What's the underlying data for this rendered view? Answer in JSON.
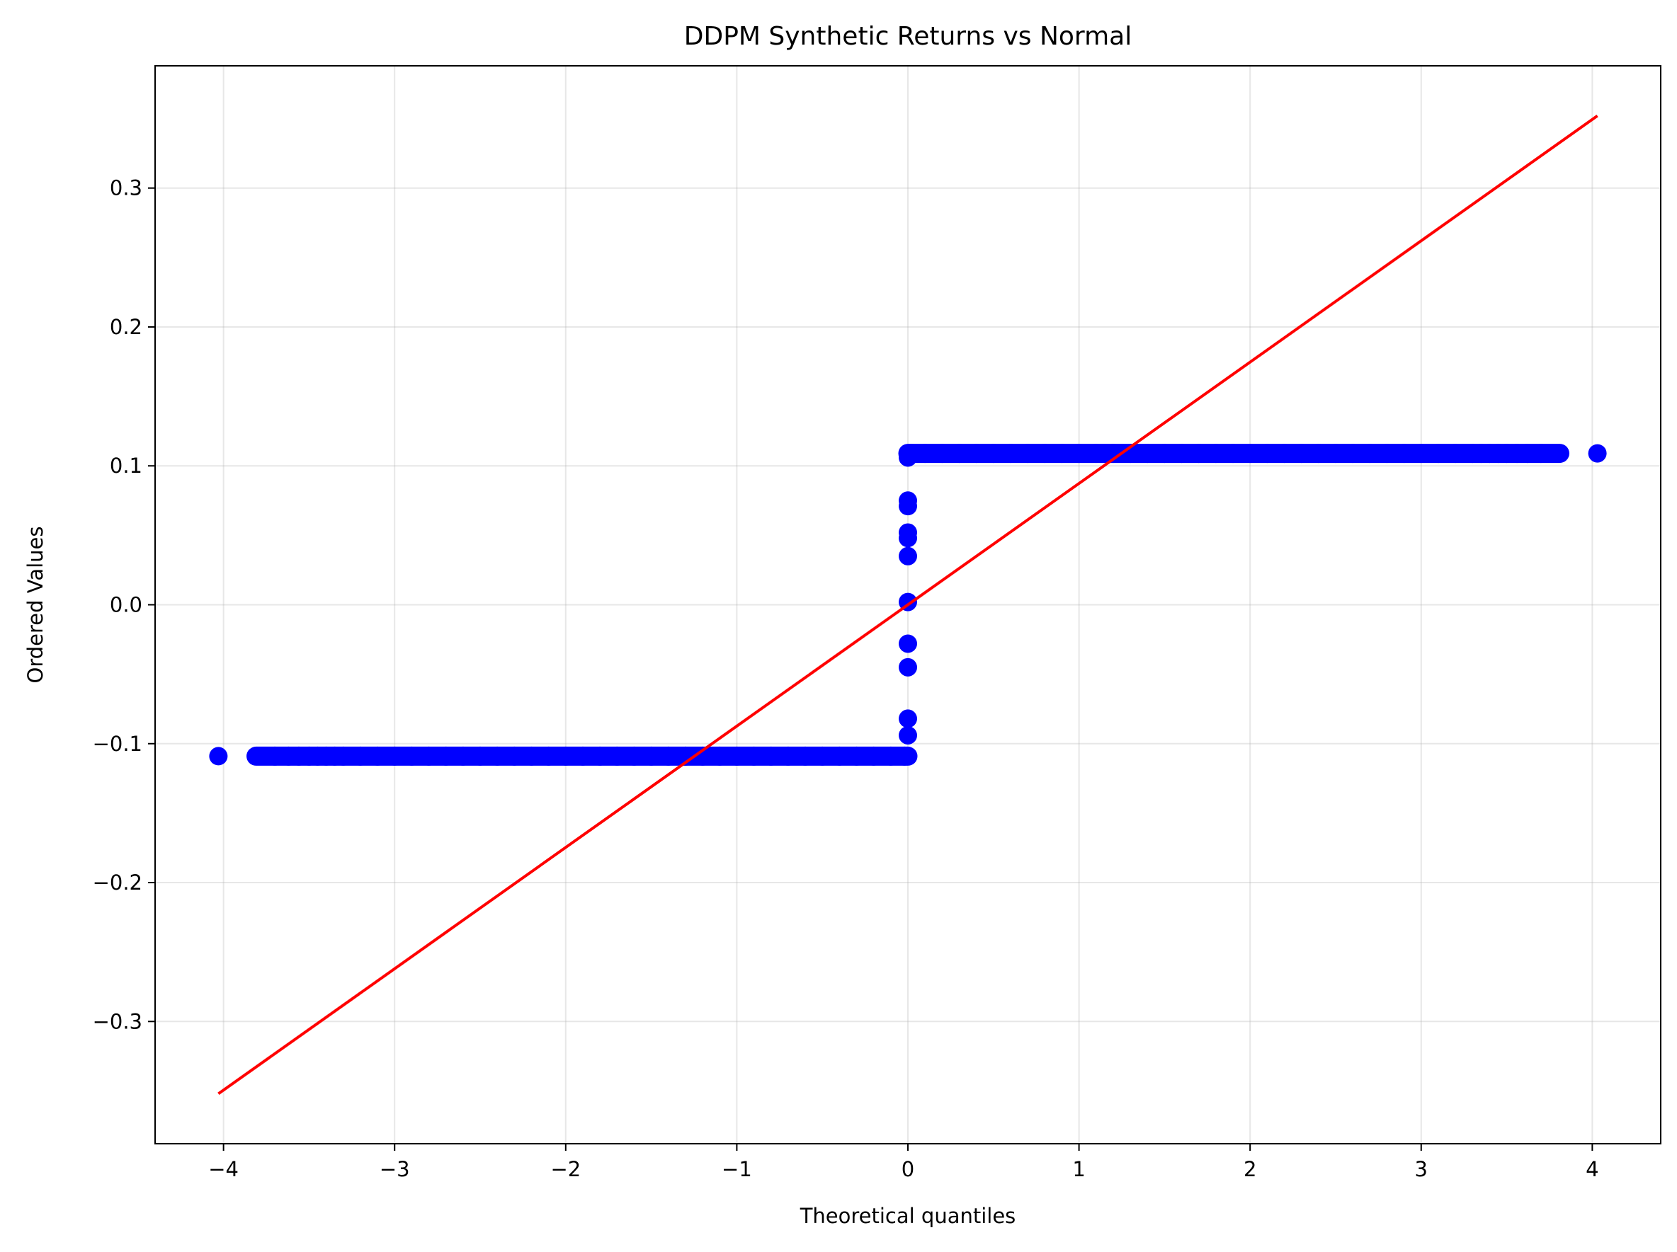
{
  "chart_data": {
    "type": "scatter",
    "title": "DDPM Synthetic Returns vs Normal",
    "xlabel": "Theoretical quantiles",
    "ylabel": "Ordered Values",
    "xlim": [
      -4.4,
      4.4
    ],
    "ylim": [
      -0.388,
      0.388
    ],
    "grid": true,
    "xticks": [
      -4,
      -3,
      -2,
      -1,
      0,
      1,
      2,
      3,
      4
    ],
    "xtick_labels": [
      "−4",
      "−3",
      "−2",
      "−1",
      "0",
      "1",
      "2",
      "3",
      "4"
    ],
    "yticks": [
      -0.3,
      -0.2,
      -0.1,
      0.0,
      0.1,
      0.2,
      0.3
    ],
    "ytick_labels": [
      "−0.3",
      "−0.2",
      "−0.1",
      "0.0",
      "0.1",
      "0.2",
      "0.3"
    ],
    "series": [
      {
        "type": "scatter",
        "color": "#0000ff",
        "points": [
          [
            -4.03,
            -0.109
          ],
          [
            -3.81,
            -0.109
          ],
          [
            -3.7,
            -0.109
          ],
          [
            -3.62,
            -0.109
          ],
          [
            -3.56,
            -0.109
          ],
          [
            -3.5,
            -0.109
          ],
          [
            -3.45,
            -0.109
          ],
          [
            -3.4,
            -0.109
          ],
          [
            -3.35,
            -0.109
          ],
          [
            -3.3,
            -0.109
          ],
          [
            -3.2,
            -0.109
          ],
          [
            -3.1,
            -0.109
          ],
          [
            -3.0,
            -0.109
          ],
          [
            -2.9,
            -0.109
          ],
          [
            -2.8,
            -0.109
          ],
          [
            -2.7,
            -0.109
          ],
          [
            -2.6,
            -0.109
          ],
          [
            -2.5,
            -0.109
          ],
          [
            -2.4,
            -0.109
          ],
          [
            -2.3,
            -0.109
          ],
          [
            -2.2,
            -0.109
          ],
          [
            -2.1,
            -0.109
          ],
          [
            -2.0,
            -0.109
          ],
          [
            -1.9,
            -0.109
          ],
          [
            -1.8,
            -0.109
          ],
          [
            -1.7,
            -0.109
          ],
          [
            -1.6,
            -0.109
          ],
          [
            -1.5,
            -0.109
          ],
          [
            -1.4,
            -0.109
          ],
          [
            -1.3,
            -0.109
          ],
          [
            -1.2,
            -0.109
          ],
          [
            -1.1,
            -0.109
          ],
          [
            -1.0,
            -0.109
          ],
          [
            -0.9,
            -0.109
          ],
          [
            -0.8,
            -0.109
          ],
          [
            -0.7,
            -0.109
          ],
          [
            -0.6,
            -0.109
          ],
          [
            -0.5,
            -0.109
          ],
          [
            -0.4,
            -0.109
          ],
          [
            -0.3,
            -0.109
          ],
          [
            -0.2,
            -0.109
          ],
          [
            -0.1,
            -0.109
          ],
          [
            -0.02,
            -0.109
          ],
          [
            0.0,
            -0.109
          ],
          [
            0.0,
            -0.094
          ],
          [
            0.0,
            -0.082
          ],
          [
            0.0,
            -0.045
          ],
          [
            0.0,
            -0.028
          ],
          [
            0.0,
            0.002
          ],
          [
            0.0,
            0.035
          ],
          [
            0.0,
            0.048
          ],
          [
            0.0,
            0.052
          ],
          [
            0.0,
            0.071
          ],
          [
            0.0,
            0.075
          ],
          [
            0.0,
            0.106
          ],
          [
            0.0,
            0.109
          ],
          [
            0.02,
            0.109
          ],
          [
            0.1,
            0.109
          ],
          [
            0.2,
            0.109
          ],
          [
            0.3,
            0.109
          ],
          [
            0.4,
            0.109
          ],
          [
            0.5,
            0.109
          ],
          [
            0.6,
            0.109
          ],
          [
            0.7,
            0.109
          ],
          [
            0.8,
            0.109
          ],
          [
            0.9,
            0.109
          ],
          [
            1.0,
            0.109
          ],
          [
            1.1,
            0.109
          ],
          [
            1.2,
            0.109
          ],
          [
            1.3,
            0.109
          ],
          [
            1.4,
            0.109
          ],
          [
            1.5,
            0.109
          ],
          [
            1.6,
            0.109
          ],
          [
            1.7,
            0.109
          ],
          [
            1.8,
            0.109
          ],
          [
            1.9,
            0.109
          ],
          [
            2.0,
            0.109
          ],
          [
            2.1,
            0.109
          ],
          [
            2.2,
            0.109
          ],
          [
            2.3,
            0.109
          ],
          [
            2.4,
            0.109
          ],
          [
            2.5,
            0.109
          ],
          [
            2.6,
            0.109
          ],
          [
            2.7,
            0.109
          ],
          [
            2.8,
            0.109
          ],
          [
            2.9,
            0.109
          ],
          [
            3.0,
            0.109
          ],
          [
            3.1,
            0.109
          ],
          [
            3.2,
            0.109
          ],
          [
            3.3,
            0.109
          ],
          [
            3.35,
            0.109
          ],
          [
            3.4,
            0.109
          ],
          [
            3.45,
            0.109
          ],
          [
            3.5,
            0.109
          ],
          [
            3.56,
            0.109
          ],
          [
            3.62,
            0.109
          ],
          [
            3.7,
            0.109
          ],
          [
            3.81,
            0.109
          ],
          [
            4.03,
            0.109
          ]
        ]
      },
      {
        "type": "line",
        "color": "#ff0000",
        "x": [
          -4.03,
          4.03
        ],
        "y": [
          -0.352,
          0.352
        ]
      }
    ]
  }
}
